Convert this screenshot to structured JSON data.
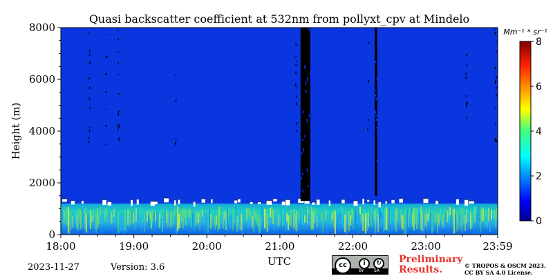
{
  "chart_data": {
    "type": "heatmap",
    "title": "Quasi backscatter coefficient at 532nm from pollyxt_cpv at Mindelo",
    "xlabel": "UTC",
    "ylabel": "Height (m)",
    "x_ticks": [
      "18:00",
      "19:00",
      "20:00",
      "21:00",
      "22:00",
      "23:00",
      "23:59"
    ],
    "x_range": [
      "18:00",
      "23:59"
    ],
    "y_ticks": [
      0,
      2000,
      4000,
      6000,
      8000
    ],
    "ylim": [
      0,
      8000
    ],
    "colorbar": {
      "unit_label": "Mm⁻¹ * sr⁻¹",
      "ticks": [
        0,
        2,
        4,
        6,
        8
      ],
      "range": [
        0,
        8
      ],
      "colormap": "jet"
    },
    "features": [
      {
        "label": "aerosol layer",
        "from": "18:00",
        "to": "23:59",
        "height_top_m": 1200
      },
      {
        "label": "no data",
        "from": "21:17",
        "to": "21:25",
        "height_range_m": [
          1300,
          8000
        ]
      },
      {
        "label": "no data",
        "from": "22:18",
        "to": "22:20",
        "height_range_m": [
          1500,
          8000
        ]
      }
    ]
  },
  "footer": {
    "date": "2023-11-27",
    "version": "Version: 3.6",
    "preliminary_line1": "Preliminary",
    "preliminary_line2": "Results.",
    "copyright_line1": "© TROPOS & OSCM 2023.",
    "copyright_line2": "CC BY SA 4.0 License."
  },
  "license_badge": {
    "main": "cc",
    "by": "BY",
    "sa": "SA",
    "by_symbol": "i",
    "sa_symbol": "↻"
  },
  "colors": {
    "background_field": "#0a36e0",
    "no_data": "#000000",
    "saturated": "#ffffff"
  }
}
